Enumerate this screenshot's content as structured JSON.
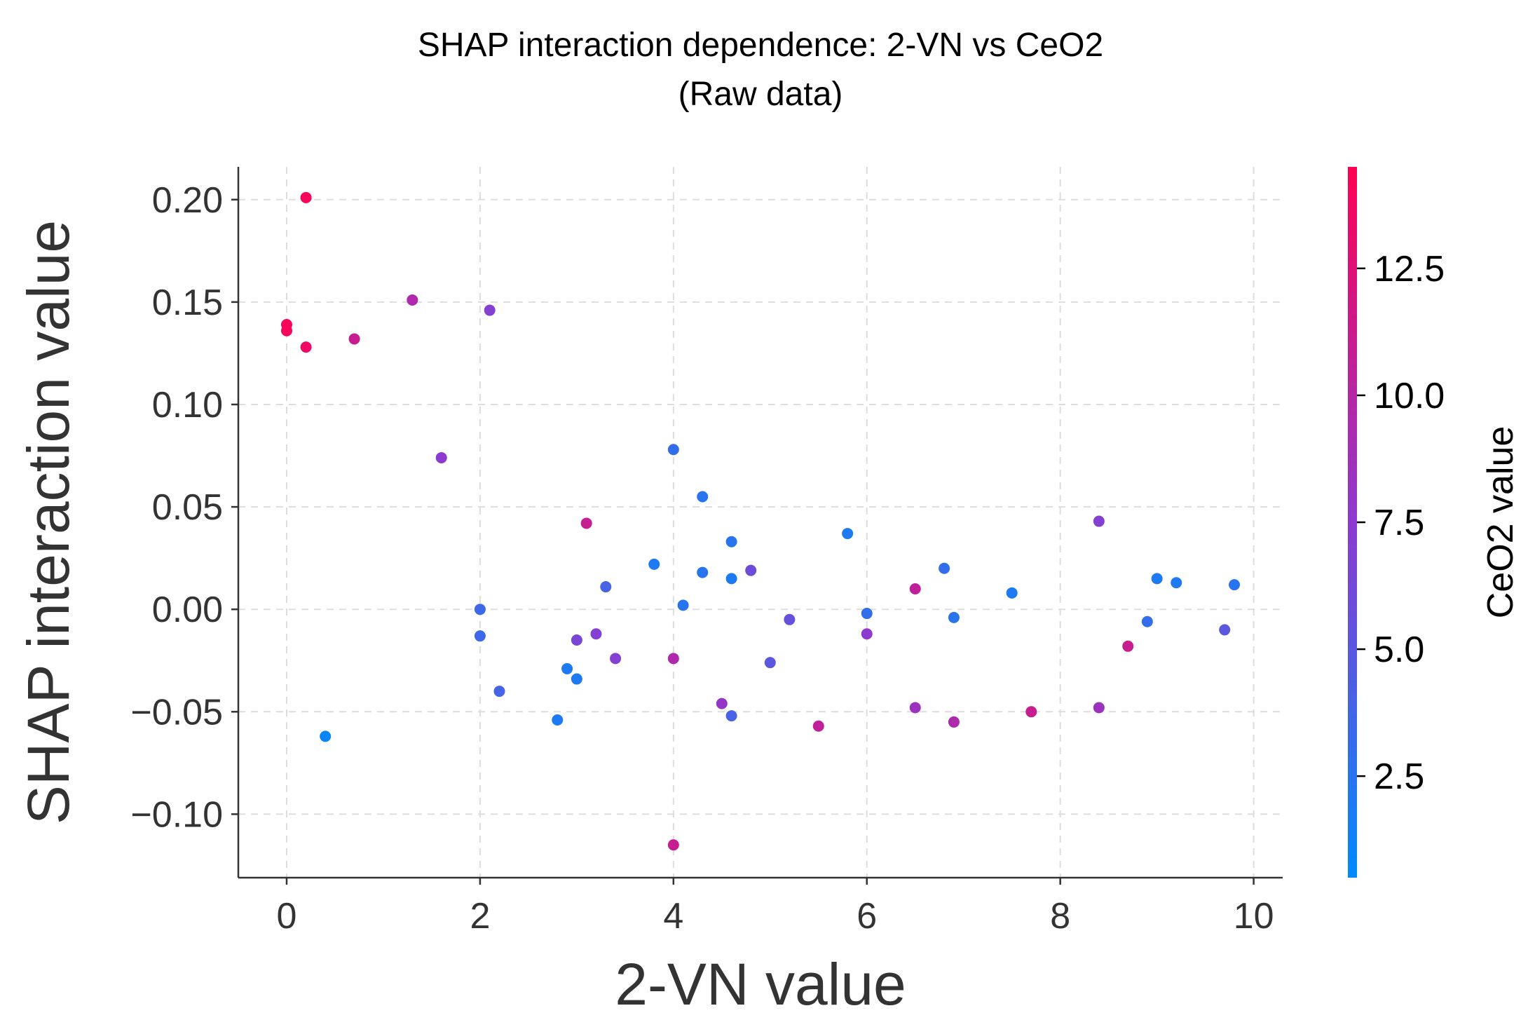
{
  "chart_data": {
    "type": "scatter",
    "title": "SHAP interaction dependence: 2-VN vs CeO2",
    "subtitle": "(Raw data)",
    "xlabel": "2-VN value",
    "ylabel": "SHAP interaction value",
    "xlim": [
      -0.5,
      10.3
    ],
    "ylim": [
      -0.131,
      0.216
    ],
    "xticks": [
      0,
      2,
      4,
      6,
      8,
      10
    ],
    "xtick_labels": [
      "0",
      "2",
      "4",
      "6",
      "8",
      "10"
    ],
    "yticks": [
      -0.1,
      -0.05,
      0.0,
      0.05,
      0.1,
      0.15,
      0.2
    ],
    "ytick_labels": [
      "−0.10",
      "−0.05",
      "0.00",
      "0.05",
      "0.10",
      "0.15",
      "0.20"
    ],
    "grid": true,
    "colorbar": {
      "label": "CeO2 value",
      "range": [
        0.5,
        14.5
      ],
      "ticks": [
        2.5,
        5.0,
        7.5,
        10.0,
        12.5
      ],
      "tick_labels": [
        "2.5",
        "5.0",
        "7.5",
        "10.0",
        "12.5"
      ],
      "color_low": "#008bfb",
      "color_mid": "#8d3ad0",
      "color_high": "#ff0052"
    },
    "points": [
      {
        "x": 0.0,
        "y": 0.139,
        "c": 14.0
      },
      {
        "x": 0.0,
        "y": 0.136,
        "c": 14.0
      },
      {
        "x": 0.2,
        "y": 0.201,
        "c": 14.0
      },
      {
        "x": 0.2,
        "y": 0.128,
        "c": 13.5
      },
      {
        "x": 0.4,
        "y": -0.062,
        "c": 1.0
      },
      {
        "x": 0.7,
        "y": 0.132,
        "c": 11.0
      },
      {
        "x": 1.3,
        "y": 0.151,
        "c": 9.5
      },
      {
        "x": 1.6,
        "y": 0.074,
        "c": 7.5
      },
      {
        "x": 2.0,
        "y": 0.0,
        "c": 3.5
      },
      {
        "x": 2.0,
        "y": -0.013,
        "c": 3.5
      },
      {
        "x": 2.1,
        "y": 0.146,
        "c": 7.0
      },
      {
        "x": 2.2,
        "y": -0.04,
        "c": 4.0
      },
      {
        "x": 2.8,
        "y": -0.054,
        "c": 2.0
      },
      {
        "x": 2.9,
        "y": -0.029,
        "c": 2.0
      },
      {
        "x": 3.0,
        "y": -0.034,
        "c": 2.0
      },
      {
        "x": 3.0,
        "y": -0.015,
        "c": 6.5
      },
      {
        "x": 3.1,
        "y": 0.042,
        "c": 11.0
      },
      {
        "x": 3.2,
        "y": -0.012,
        "c": 7.0
      },
      {
        "x": 3.3,
        "y": 0.011,
        "c": 4.0
      },
      {
        "x": 3.4,
        "y": -0.024,
        "c": 7.0
      },
      {
        "x": 3.8,
        "y": 0.022,
        "c": 2.0
      },
      {
        "x": 4.0,
        "y": 0.078,
        "c": 3.0
      },
      {
        "x": 4.0,
        "y": -0.024,
        "c": 9.5
      },
      {
        "x": 4.0,
        "y": -0.115,
        "c": 11.0
      },
      {
        "x": 4.1,
        "y": 0.002,
        "c": 2.5
      },
      {
        "x": 4.3,
        "y": 0.055,
        "c": 2.5
      },
      {
        "x": 4.3,
        "y": 0.018,
        "c": 2.5
      },
      {
        "x": 4.5,
        "y": -0.046,
        "c": 8.0
      },
      {
        "x": 4.6,
        "y": 0.033,
        "c": 2.5
      },
      {
        "x": 4.6,
        "y": 0.015,
        "c": 2.0
      },
      {
        "x": 4.6,
        "y": -0.052,
        "c": 4.0
      },
      {
        "x": 4.8,
        "y": 0.019,
        "c": 6.0
      },
      {
        "x": 5.0,
        "y": -0.026,
        "c": 5.0
      },
      {
        "x": 5.2,
        "y": -0.005,
        "c": 5.5
      },
      {
        "x": 5.5,
        "y": -0.057,
        "c": 10.5
      },
      {
        "x": 5.8,
        "y": 0.037,
        "c": 2.0
      },
      {
        "x": 6.0,
        "y": -0.002,
        "c": 3.0
      },
      {
        "x": 6.0,
        "y": -0.012,
        "c": 7.5
      },
      {
        "x": 6.5,
        "y": 0.01,
        "c": 10.5
      },
      {
        "x": 6.5,
        "y": -0.048,
        "c": 8.5
      },
      {
        "x": 6.8,
        "y": 0.02,
        "c": 3.0
      },
      {
        "x": 6.9,
        "y": -0.004,
        "c": 2.5
      },
      {
        "x": 6.9,
        "y": -0.055,
        "c": 9.5
      },
      {
        "x": 7.5,
        "y": 0.008,
        "c": 2.0
      },
      {
        "x": 7.7,
        "y": -0.05,
        "c": 11.0
      },
      {
        "x": 8.4,
        "y": 0.043,
        "c": 7.0
      },
      {
        "x": 8.4,
        "y": -0.048,
        "c": 8.5
      },
      {
        "x": 8.7,
        "y": -0.018,
        "c": 11.0
      },
      {
        "x": 8.9,
        "y": -0.006,
        "c": 3.0
      },
      {
        "x": 9.0,
        "y": 0.015,
        "c": 2.0
      },
      {
        "x": 9.2,
        "y": 0.013,
        "c": 2.0
      },
      {
        "x": 9.7,
        "y": -0.01,
        "c": 5.0
      },
      {
        "x": 9.8,
        "y": 0.012,
        "c": 2.5
      }
    ]
  }
}
